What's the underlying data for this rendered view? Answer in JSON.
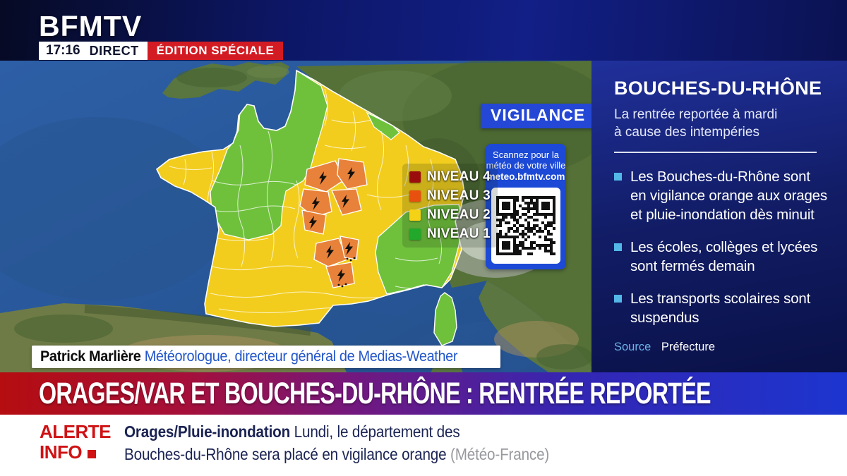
{
  "theme": {
    "alert_yellow": "#f2cd1e",
    "alert_orange": "#e8823a",
    "alert_green": "#6fc13c",
    "legend_red": "#9b0d0d",
    "legend_orange": "#e8500f",
    "legend_yellow": "#f6d216",
    "legend_green": "#22a82b",
    "vigilance_blue": "#2447d6",
    "qr_blue": "#1c49d6",
    "panel_bullet": "#53b7e8",
    "badge_red": "#d31b23",
    "alert_red": "#cf1214",
    "text_navy": "#1b2453",
    "muted_gray": "#97999e",
    "caption_blue": "#2356c9",
    "source_blue": "#6db3e8"
  },
  "header": {
    "logo": "BFMTV",
    "time": "17:16",
    "live_label": "DIRECT",
    "badge": "ÉDITION SPÉCIALE"
  },
  "map": {
    "vigilance_label": "VIGILANCE",
    "qr": {
      "line1": "Scannez pour la",
      "line2": "météo de votre ville",
      "url": "meteo.bfmtv.com"
    },
    "legend": [
      {
        "label": "NIVEAU 4",
        "color": "#9b0d0d"
      },
      {
        "label": "NIVEAU 3",
        "color": "#e8500f"
      },
      {
        "label": "NIVEAU 2",
        "color": "#f6d216"
      },
      {
        "label": "NIVEAU 1",
        "color": "#22a82b"
      }
    ]
  },
  "caption": {
    "name": "Patrick Marlière",
    "role": "Météorologue, directeur général de Medias-Weather"
  },
  "banner": {
    "text": "ORAGES/VAR ET BOUCHES-DU-RHÔNE : RENTRÉE REPORTÉE"
  },
  "ticker": {
    "alert_line1": "ALERTE",
    "alert_line2": "INFO",
    "tag": "Orages/Pluie-inondation",
    "text1": " Lundi, le département des",
    "text2": "Bouches-du-Rhône sera placé en vigilance orange ",
    "source": "(Météo-France)"
  },
  "panel": {
    "title": "BOUCHES-DU-RHÔNE",
    "subtitle1": "La rentrée reportée à mardi",
    "subtitle2": "à cause des intempéries",
    "bullets": [
      "Les Bouches-du-Rhône sont en vigilance orange aux orages et pluie-inondation dès minuit",
      "Les écoles, collèges et lycées sont fermés demain",
      "Les transports scolaires sont suspendus"
    ],
    "source_label": "Source",
    "source_value": "Préfecture"
  }
}
